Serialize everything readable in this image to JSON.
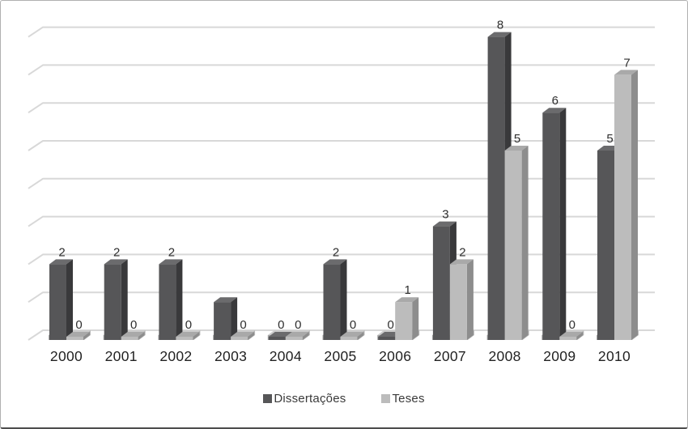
{
  "window": {
    "background": "#ffffff",
    "border_color": "#b0b0b0",
    "border_bottom_color": "#4d4d4d"
  },
  "chart_data": {
    "type": "bar",
    "style": "3d-column",
    "title": "",
    "xlabel": "",
    "ylabel": "",
    "categories": [
      "2000",
      "2001",
      "2002",
      "2003",
      "2004",
      "2005",
      "2006",
      "2007",
      "2008",
      "2009",
      "2010"
    ],
    "series": [
      {
        "name": "Dissertações",
        "values": [
          2,
          2,
          2,
          1,
          0,
          2,
          0,
          3,
          8,
          6,
          5
        ],
        "data_labels": [
          "2",
          "2",
          "2",
          "",
          "0",
          "2",
          "0",
          "3",
          "8",
          "6",
          "5"
        ],
        "color": "#565658",
        "color_side": "#39393b",
        "color_top": "#6b6b6d"
      },
      {
        "name": "Teses",
        "values": [
          0,
          0,
          0,
          0,
          0,
          0,
          1,
          2,
          5,
          0,
          7
        ],
        "data_labels": [
          "0",
          "0",
          "0",
          "0",
          "0",
          "0",
          "1",
          "2",
          "5",
          "0",
          "7"
        ],
        "color": "#bcbcbc",
        "color_side": "#8d8d8d",
        "color_top": "#a9a9a9"
      }
    ],
    "ylim": [
      0,
      8
    ],
    "gridline_step": 1,
    "grid": true,
    "y_tick_labels_visible": false,
    "legend_position": "bottom"
  },
  "colors": {
    "gridline": "#d8d8d8",
    "text": "#2e2e2e",
    "axis_label_text": "#222222",
    "floor_top": "#cdcdcd",
    "floor_front": "#a8a8a8",
    "floor_side": "#bababa"
  }
}
